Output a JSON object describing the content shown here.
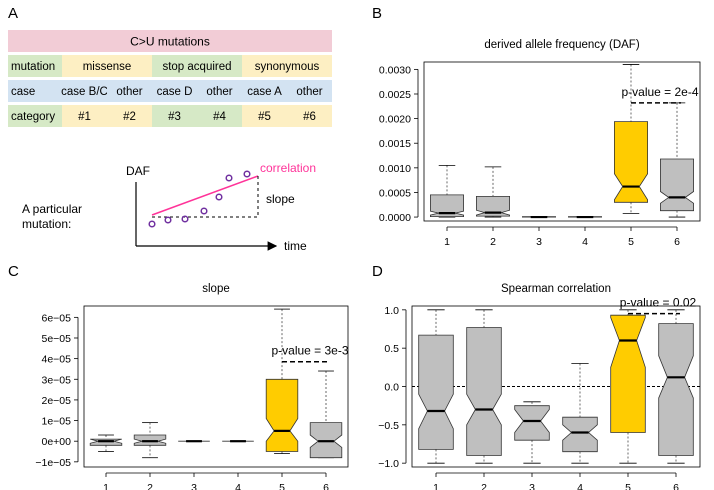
{
  "panel_letters": {
    "a": "A",
    "b": "B",
    "c": "C",
    "d": "D"
  },
  "colors": {
    "header_pink": "#f2ccd6",
    "row_green": "#d6e9c6",
    "row_yellow": "#fdefc3",
    "row_blue": "#d3e3f2",
    "highlight": "#ffcc00",
    "box_gray": "#bfbfbf",
    "magenta": "#ff3399",
    "point_purple": "#7030a0"
  },
  "table": {
    "title": "C>U mutations",
    "rows": [
      {
        "label": "mutation",
        "cells": [
          "missense",
          "stop acquired",
          "synonymous"
        ]
      },
      {
        "label": "case",
        "cells": [
          "case B/C",
          "other",
          "case D",
          "other",
          "case A",
          "other"
        ]
      },
      {
        "label": "category",
        "cells": [
          "#1",
          "#2",
          "#3",
          "#4",
          "#5",
          "#6"
        ]
      }
    ]
  },
  "schematic": {
    "y_axis_label": "DAF",
    "x_axis_label": "time",
    "line_label": "correlation",
    "slope_label": "slope",
    "caption_line1": "A particular",
    "caption_line2": "mutation:"
  },
  "chart_data": [
    {
      "type": "box",
      "panel": "B",
      "title": "derived allele frequency  (DAF)",
      "categories": [
        "1",
        "2",
        "3",
        "4",
        "5",
        "6"
      ],
      "yticks": [
        "0.0000",
        "0.0005",
        "0.0010",
        "0.0015",
        "0.0020",
        "0.0025",
        "0.0030"
      ],
      "ylim": [
        -8e-05,
        0.00315
      ],
      "highlight": "5",
      "boxes": [
        {
          "whisker_low": 0.0,
          "q1": 1e-05,
          "median": 8e-05,
          "notch_low": 4e-05,
          "notch_high": 0.00012,
          "q3": 0.00045,
          "whisker_high": 0.00105
        },
        {
          "whisker_low": 0.0,
          "q1": 2e-05,
          "median": 9e-05,
          "notch_low": 4e-05,
          "notch_high": 0.00014,
          "q3": 0.00042,
          "whisker_high": 0.00102
        },
        {
          "whisker_low": 0.0,
          "q1": 0.0,
          "median": 0.0,
          "notch_low": 0.0,
          "notch_high": 0.0,
          "q3": 1e-05,
          "whisker_high": 1e-05
        },
        {
          "whisker_low": 0.0,
          "q1": 0.0,
          "median": 0.0,
          "notch_low": 0.0,
          "notch_high": 0.0,
          "q3": 1e-05,
          "whisker_high": 1e-05
        },
        {
          "whisker_low": 7e-05,
          "q1": 0.0003,
          "median": 0.00062,
          "notch_low": 0.00035,
          "notch_high": 0.00088,
          "q3": 0.00194,
          "whisker_high": 0.0031
        },
        {
          "whisker_low": 0.0,
          "q1": 0.00013,
          "median": 0.0004,
          "notch_low": 0.00028,
          "notch_high": 0.00052,
          "q3": 0.00118,
          "whisker_high": 0.00232
        }
      ],
      "pvalue_text": "p-value = 2e-4",
      "pvalue_bar_y": 0.00232
    },
    {
      "type": "box",
      "panel": "C",
      "title": "slope",
      "categories": [
        "1",
        "2",
        "3",
        "4",
        "5",
        "6"
      ],
      "yticks": [
        "−1e−05",
        "0e+00",
        "1e−05",
        "2e−05",
        "3e−05",
        "4e−05",
        "5e−05",
        "6e−05"
      ],
      "ytick_values": [
        -1e-05,
        0.0,
        1e-05,
        2e-05,
        3e-05,
        4e-05,
        5e-05,
        6e-05
      ],
      "ylim": [
        -1.25e-05,
        6.55e-05
      ],
      "highlight": "5",
      "boxes": [
        {
          "whisker_low": -5e-06,
          "q1": -2e-06,
          "median": 0.0,
          "notch_low": -1e-06,
          "notch_high": 1e-06,
          "q3": 1e-06,
          "whisker_high": 3e-06
        },
        {
          "whisker_low": -8e-06,
          "q1": -2e-06,
          "median": 0.0,
          "notch_low": -1e-06,
          "notch_high": 1e-06,
          "q3": 3e-06,
          "whisker_high": 9e-06
        },
        {
          "whisker_low": 0.0,
          "q1": 0.0,
          "median": 0.0,
          "notch_low": 0.0,
          "notch_high": 0.0,
          "q3": 0.0,
          "whisker_high": 0.0
        },
        {
          "whisker_low": 0.0,
          "q1": 0.0,
          "median": 0.0,
          "notch_low": 0.0,
          "notch_high": 0.0,
          "q3": 0.0,
          "whisker_high": 0.0
        },
        {
          "whisker_low": -6e-06,
          "q1": -5e-06,
          "median": 5e-06,
          "notch_low": 0.0,
          "notch_high": 1.1e-05,
          "q3": 3e-05,
          "whisker_high": 6.4e-05
        },
        {
          "whisker_low": -8e-06,
          "q1": -8e-06,
          "median": 0.0,
          "notch_low": -3e-06,
          "notch_high": 3e-06,
          "q3": 9e-06,
          "whisker_high": 3.4e-05
        }
      ],
      "pvalue_text": "p-value = 3e-3",
      "pvalue_bar_y": 3.85e-05
    },
    {
      "type": "box",
      "panel": "D",
      "title": "Spearman correlation",
      "categories": [
        "1",
        "2",
        "3",
        "4",
        "5",
        "6"
      ],
      "yticks": [
        "−1.0",
        "−0.5",
        "0.0",
        "0.5",
        "1.0"
      ],
      "ytick_values": [
        -1.0,
        -0.5,
        0.0,
        0.5,
        1.0
      ],
      "ylim": [
        -1.05,
        1.05
      ],
      "highlight": "5",
      "reference_line": 0.0,
      "boxes": [
        {
          "whisker_low": -1.0,
          "q1": -0.82,
          "median": -0.32,
          "notch_low": -0.55,
          "notch_high": -0.1,
          "q3": 0.67,
          "whisker_high": 1.0
        },
        {
          "whisker_low": -1.0,
          "q1": -0.9,
          "median": -0.3,
          "notch_low": -0.5,
          "notch_high": -0.1,
          "q3": 0.77,
          "whisker_high": 1.0
        },
        {
          "whisker_low": -1.0,
          "q1": -0.7,
          "median": -0.45,
          "notch_low": -0.6,
          "notch_high": -0.3,
          "q3": -0.25,
          "whisker_high": -0.2
        },
        {
          "whisker_low": -1.0,
          "q1": -0.85,
          "median": -0.6,
          "notch_low": -0.7,
          "notch_high": -0.5,
          "q3": -0.4,
          "whisker_high": 0.3
        },
        {
          "whisker_low": -1.0,
          "q1": -0.6,
          "median": 0.6,
          "notch_low": 0.25,
          "notch_high": 0.9,
          "q3": 0.93,
          "whisker_high": 1.0
        },
        {
          "whisker_low": -1.0,
          "q1": -0.9,
          "median": 0.12,
          "notch_low": -0.15,
          "notch_high": 0.4,
          "q3": 0.82,
          "whisker_high": 1.0
        }
      ],
      "pvalue_text": "p-value = 0.02",
      "pvalue_bar_y": 0.95
    }
  ]
}
